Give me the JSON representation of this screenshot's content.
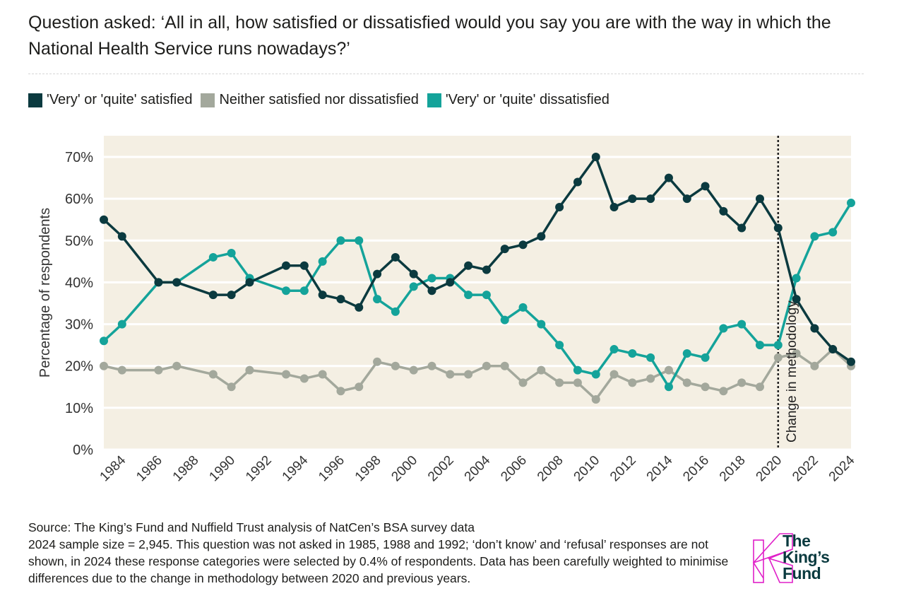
{
  "question": "Question asked: ‘All in all, how satisfied or dissatisfied would you say you are with the way in which the National Health Service runs nowadays?’",
  "colors": {
    "satisfied": "#0b3a3f",
    "neither": "#a3a89c",
    "dissatisfied": "#14a39a",
    "plot_bg": "#f4efe3"
  },
  "chart_data": {
    "type": "line",
    "ylabel": "Percentage of respondents",
    "xlabel": "",
    "ylim": [
      0,
      70
    ],
    "yticks": [
      "0%",
      "10%",
      "20%",
      "30%",
      "40%",
      "50%",
      "60%",
      "70%"
    ],
    "xlim": [
      1983,
      2024
    ],
    "xticks": [
      "1984",
      "1986",
      "1988",
      "1990",
      "1992",
      "1994",
      "1996",
      "1998",
      "2000",
      "2002",
      "2004",
      "2006",
      "2008",
      "2010",
      "2012",
      "2014",
      "2016",
      "2018",
      "2020",
      "2022",
      "2024"
    ],
    "grid": true,
    "legend_position": "top-left",
    "annotation": {
      "year": 2020,
      "label": "Change in methodology"
    },
    "x": [
      1983,
      1984,
      1986,
      1987,
      1989,
      1990,
      1991,
      1993,
      1994,
      1995,
      1996,
      1997,
      1998,
      1999,
      2000,
      2001,
      2002,
      2003,
      2004,
      2005,
      2006,
      2007,
      2008,
      2009,
      2010,
      2011,
      2012,
      2013,
      2014,
      2015,
      2016,
      2017,
      2018,
      2019,
      2020,
      2021,
      2022,
      2023,
      2024
    ],
    "series": [
      {
        "key": "neither",
        "name": "Neither satisfied nor dissatisfied",
        "values": [
          20,
          19,
          19,
          20,
          18,
          15,
          19,
          18,
          17,
          18,
          14,
          15,
          21,
          20,
          19,
          20,
          18,
          18,
          20,
          20,
          16,
          19,
          16,
          16,
          12,
          18,
          16,
          17,
          19,
          16,
          15,
          14,
          16,
          15,
          22,
          23,
          20,
          24,
          20
        ]
      },
      {
        "key": "dissatisfied",
        "name": "'Very' or 'quite' dissatisfied",
        "values": [
          26,
          30,
          40,
          40,
          46,
          47,
          41,
          38,
          38,
          45,
          50,
          50,
          36,
          33,
          39,
          41,
          41,
          37,
          37,
          31,
          34,
          30,
          25,
          19,
          18,
          24,
          23,
          22,
          15,
          23,
          22,
          29,
          30,
          25,
          25,
          41,
          51,
          52,
          59
        ]
      },
      {
        "key": "satisfied",
        "name": "'Very' or 'quite' satisfied",
        "values": [
          55,
          51,
          40,
          40,
          37,
          37,
          40,
          44,
          44,
          37,
          36,
          34,
          42,
          46,
          42,
          38,
          40,
          44,
          43,
          48,
          49,
          51,
          58,
          64,
          70,
          58,
          60,
          60,
          65,
          60,
          63,
          57,
          53,
          60,
          53,
          36,
          29,
          24,
          21
        ]
      }
    ]
  },
  "legend": [
    {
      "label": "'Very' or 'quite' satisfied",
      "key": "satisfied"
    },
    {
      "label": "Neither satisfied nor dissatisfied",
      "key": "neither"
    },
    {
      "label": "'Very' or 'quite' dissatisfied",
      "key": "dissatisfied"
    }
  ],
  "footer": {
    "source": "Source: The King’s Fund and Nuffield Trust analysis of NatCen’s BSA survey data",
    "note": "2024 sample size = 2,945. This question was not asked in 1985, 1988 and 1992; ‘don’t know’ and ‘refusal’ responses are not shown, in 2024 these response categories were selected by 0.4% of respondents. Data has been carefully weighted to minimise differences due to the change in methodology between 2020 and previous years."
  },
  "logo": {
    "line1": "The",
    "line2": "King’s",
    "line3": "Fund"
  }
}
